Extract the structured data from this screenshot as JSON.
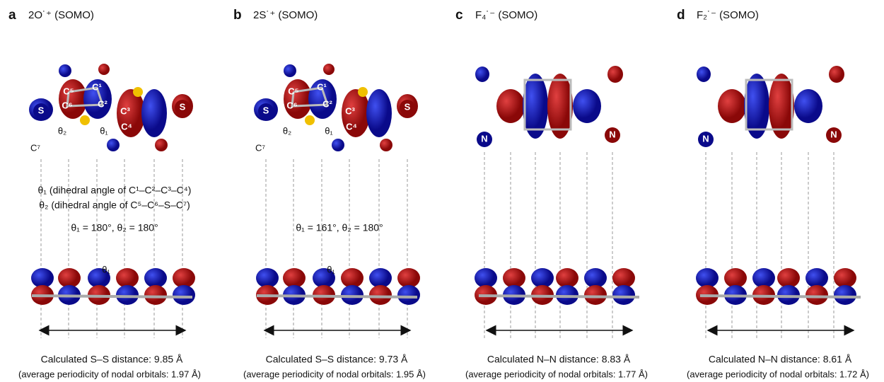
{
  "panels": [
    {
      "label": "a",
      "title": "2O˙⁺ (SOMO)",
      "atoms": [
        "S",
        "C⁵",
        "C¹",
        "C⁶",
        "C²",
        "C³",
        "C⁴",
        "S",
        "C⁷",
        "θ₂",
        "θ₁"
      ],
      "definitions": [
        "θ₁ (dihedral angle of C¹–C²–C³–C⁴)",
        "θ₂ (dihedral angle of C⁵–C⁶–S–C⁷)"
      ],
      "angles": "θ₁ = 180°,  θ₂ = 180°",
      "side_angle": "θ₁",
      "distance": "Calculated S–S distance: 9.85 Å",
      "periodicity": "(average periodicity of nodal orbitals: 1.97 Å)"
    },
    {
      "label": "b",
      "title": "2S˙⁺ (SOMO)",
      "atoms": [
        "S",
        "C⁵",
        "C¹",
        "C⁶",
        "C²",
        "C³",
        "C⁴",
        "S",
        "C⁷",
        "θ₂",
        "θ₁"
      ],
      "angles": "θ₁ = 161°,  θ₂ = 180°",
      "side_angle": "θ₁",
      "distance": "Calculated S–S distance: 9.73 Å",
      "periodicity": "(average periodicity of nodal orbitals: 1.95 Å)"
    },
    {
      "label": "c",
      "title": "F₄˙⁻ (SOMO)",
      "atoms": [
        "N",
        "N"
      ],
      "distance": "Calculated N–N distance: 8.83 Å",
      "periodicity": "(average periodicity of nodal orbitals: 1.77 Å)"
    },
    {
      "label": "d",
      "title": "F₂˙⁻ (SOMO)",
      "atoms": [
        "N",
        "N"
      ],
      "distance": "Calculated N–N distance: 8.61 Å",
      "periodicity": "(average periodicity of nodal orbitals: 1.72 Å)"
    }
  ]
}
